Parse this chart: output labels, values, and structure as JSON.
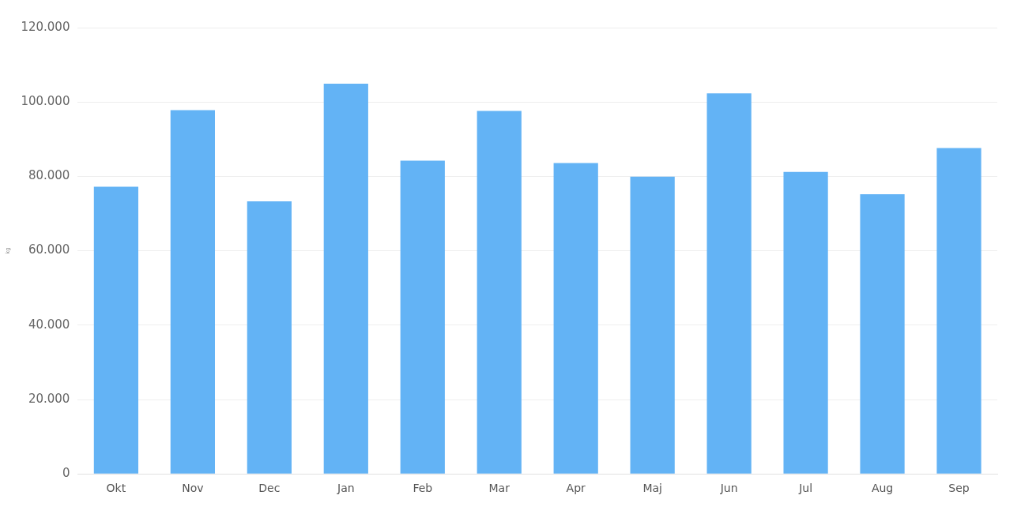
{
  "chart_data": {
    "type": "bar",
    "ylabel": "kg",
    "categories": [
      "Okt",
      "Nov",
      "Dec",
      "Jan",
      "Feb",
      "Mar",
      "Apr",
      "Maj",
      "Jun",
      "Jul",
      "Aug",
      "Sep"
    ],
    "values": [
      77200,
      97800,
      73300,
      104900,
      84200,
      97600,
      83600,
      79900,
      102300,
      81200,
      75200,
      87600
    ],
    "color": "#63b3f5",
    "ylim": [
      0,
      120000
    ],
    "yticks": [
      {
        "value": 0,
        "label": "0"
      },
      {
        "value": 20000,
        "label": "20.000"
      },
      {
        "value": 40000,
        "label": "40.000"
      },
      {
        "value": 60000,
        "label": "60.000"
      },
      {
        "value": 80000,
        "label": "80.000"
      },
      {
        "value": 100000,
        "label": "100.000"
      },
      {
        "value": 120000,
        "label": "120.000"
      }
    ],
    "grid": "y",
    "legend": false
  }
}
